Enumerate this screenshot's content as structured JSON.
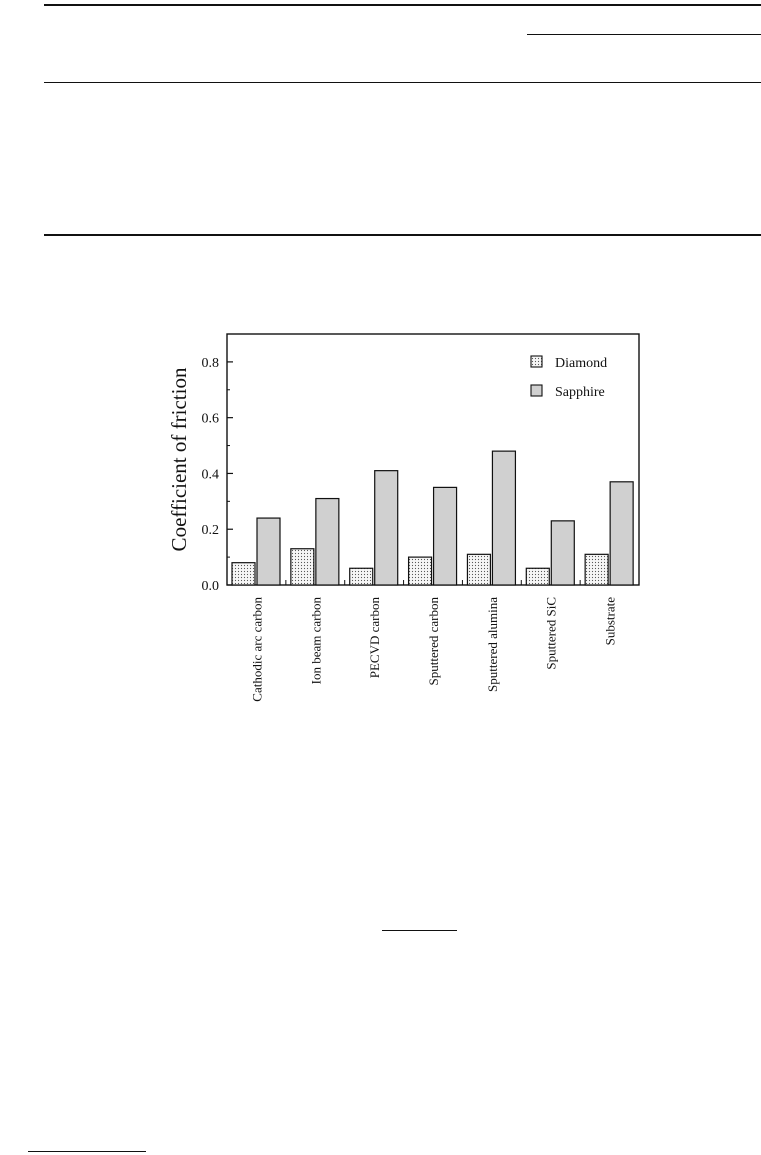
{
  "page": {
    "background": "#ffffff"
  },
  "chart_data": {
    "type": "bar",
    "title": "",
    "xlabel": "",
    "ylabel": "Coefficient of friction",
    "categories": [
      "Cathodic arc carbon",
      "Ion beam carbon",
      "PECVD carbon",
      "Sputtered carbon",
      "Sputtered alumina",
      "Sputtered SiC",
      "Substrate"
    ],
    "series": [
      {
        "name": "Diamond",
        "values": [
          0.08,
          0.13,
          0.06,
          0.1,
          0.11,
          0.06,
          0.11
        ],
        "fill": "dotted",
        "color": "#f4f4f4"
      },
      {
        "name": "Sapphire",
        "values": [
          0.24,
          0.31,
          0.41,
          0.35,
          0.48,
          0.23,
          0.37
        ],
        "fill": "solid",
        "color": "#d0d0d0"
      }
    ],
    "ylim": [
      0.0,
      0.9
    ],
    "yticks": [
      "0.0",
      "0.2",
      "0.4",
      "0.6",
      "0.8"
    ],
    "grid": false,
    "legend_position": "top-right"
  }
}
